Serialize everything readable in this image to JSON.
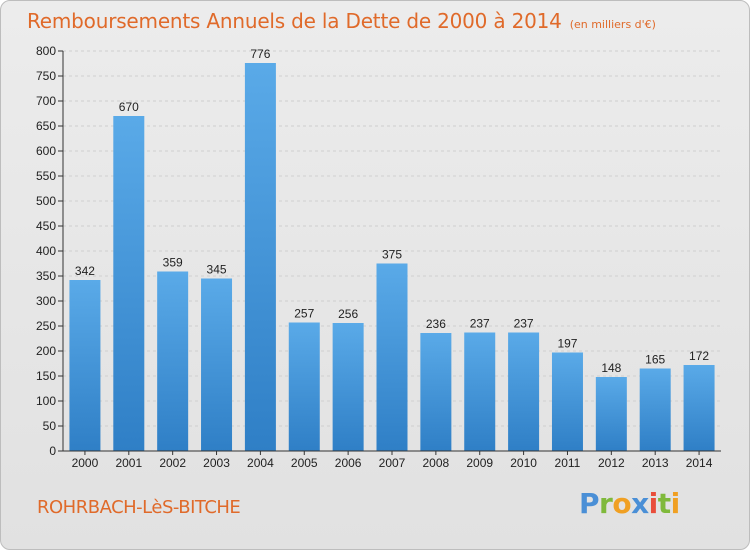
{
  "chart_data": {
    "type": "bar",
    "title": "Remboursements Annuels de la Dette de 2000 à 2014",
    "subtitle": "(en milliers d'€)",
    "xlabel": "",
    "ylabel": "",
    "ylim": [
      0,
      800
    ],
    "yticks": [
      0,
      50,
      100,
      150,
      200,
      250,
      300,
      350,
      400,
      450,
      500,
      550,
      600,
      650,
      700,
      750,
      800
    ],
    "categories": [
      "2000",
      "2001",
      "2002",
      "2003",
      "2004",
      "2005",
      "2006",
      "2007",
      "2008",
      "2009",
      "2010",
      "2011",
      "2012",
      "2013",
      "2014"
    ],
    "values": [
      342,
      670,
      359,
      345,
      776,
      257,
      256,
      375,
      236,
      237,
      237,
      197,
      148,
      165,
      172
    ],
    "grid": true,
    "bar_color": "#3f8fd6"
  },
  "footer": {
    "city": "ROHRBACH-LèS-BITCHE",
    "logo_text": "Proxiti"
  },
  "colors": {
    "accent": "#e06a2a",
    "bar": "#3f8fd6",
    "axis": "#333333"
  }
}
